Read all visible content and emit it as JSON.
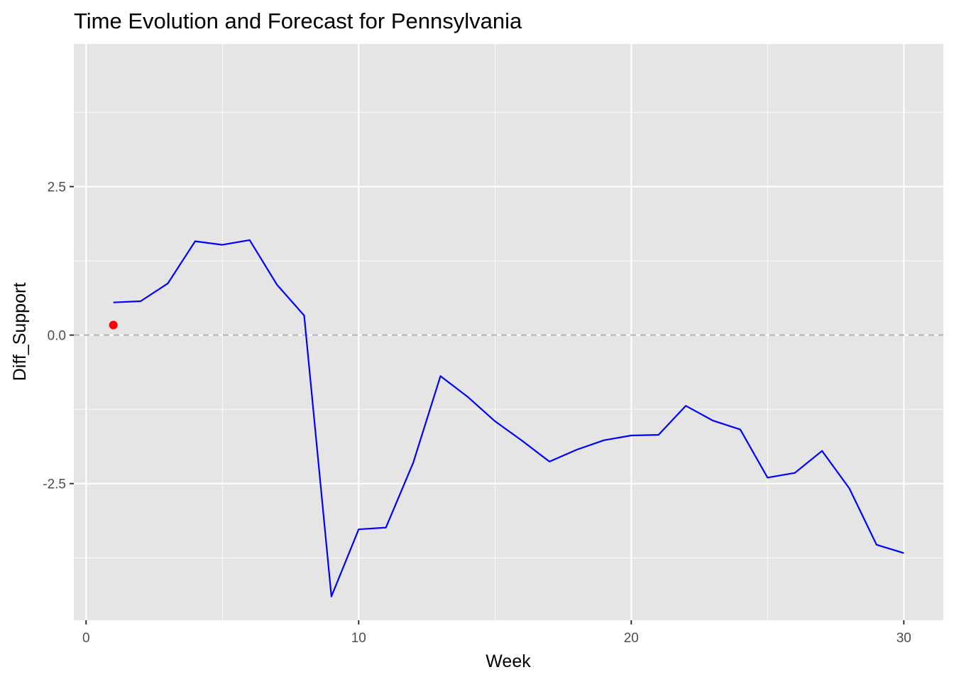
{
  "chart_data": {
    "type": "line",
    "title": "Time Evolution and Forecast for Pennsylvania",
    "xlabel": "Week",
    "ylabel": "Diff_Support",
    "xlim": [
      -0.45,
      31.45
    ],
    "ylim": [
      -4.8,
      4.9
    ],
    "x_ticks": [
      0,
      10,
      20,
      30
    ],
    "x_tick_labels": [
      "0",
      "10",
      "20",
      "30"
    ],
    "y_ticks": [
      -2.5,
      0.0,
      2.5
    ],
    "y_tick_labels": [
      "-2.5",
      "0.0",
      "2.5"
    ],
    "grid": true,
    "background": "#e5e5e5",
    "grid_color": "#ffffff",
    "reference_line": {
      "y": 0.0,
      "style": "dashed",
      "color": "#b3b3b3"
    },
    "series": [
      {
        "type": "line",
        "color": "#0000ff",
        "x": [
          1,
          2,
          3,
          4,
          5,
          6,
          7,
          8,
          9,
          10,
          11,
          12,
          13,
          14,
          15,
          16,
          17,
          18,
          19,
          20,
          21,
          22,
          23,
          24,
          25,
          26,
          27,
          28,
          29,
          30
        ],
        "values": [
          0.55,
          0.57,
          0.87,
          1.58,
          1.52,
          1.6,
          0.85,
          0.33,
          -4.4,
          -3.27,
          -3.24,
          -2.15,
          -0.69,
          -1.04,
          -1.45,
          -1.78,
          -2.13,
          -1.93,
          -1.77,
          -1.69,
          -1.68,
          -1.19,
          -1.44,
          -1.59,
          -2.4,
          -2.32,
          -1.95,
          -2.58,
          -3.53,
          -3.67
        ]
      },
      {
        "type": "point",
        "color": "#ff0000",
        "x": [
          1
        ],
        "values": [
          0.17
        ]
      }
    ]
  }
}
